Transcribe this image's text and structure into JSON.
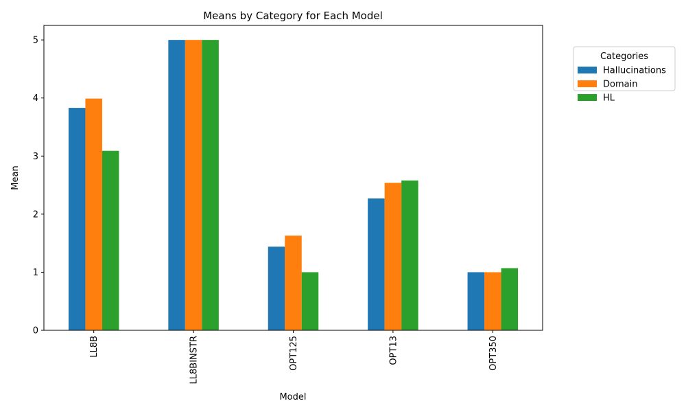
{
  "chart_data": {
    "type": "bar",
    "title": "Means by Category for Each Model",
    "xlabel": "Model",
    "ylabel": "Mean",
    "categories": [
      "LL8B",
      "LL8BINSTR",
      "OPT125",
      "OPT13",
      "OPT350"
    ],
    "series": [
      {
        "name": "Hallucinations",
        "color": "#1f77b4",
        "values": [
          3.83,
          5.0,
          1.44,
          2.27,
          1.0
        ]
      },
      {
        "name": "Domain",
        "color": "#ff7f0e",
        "values": [
          3.99,
          5.0,
          1.63,
          2.54,
          1.0
        ]
      },
      {
        "name": "HL",
        "color": "#2ca02c",
        "values": [
          3.09,
          5.0,
          1.0,
          2.58,
          1.07
        ]
      }
    ],
    "yticks": [
      0,
      1,
      2,
      3,
      4,
      5
    ],
    "ylim": [
      0,
      5.25
    ],
    "legend": {
      "title": "Categories",
      "placement": "outside-top-right"
    },
    "grid": false
  }
}
